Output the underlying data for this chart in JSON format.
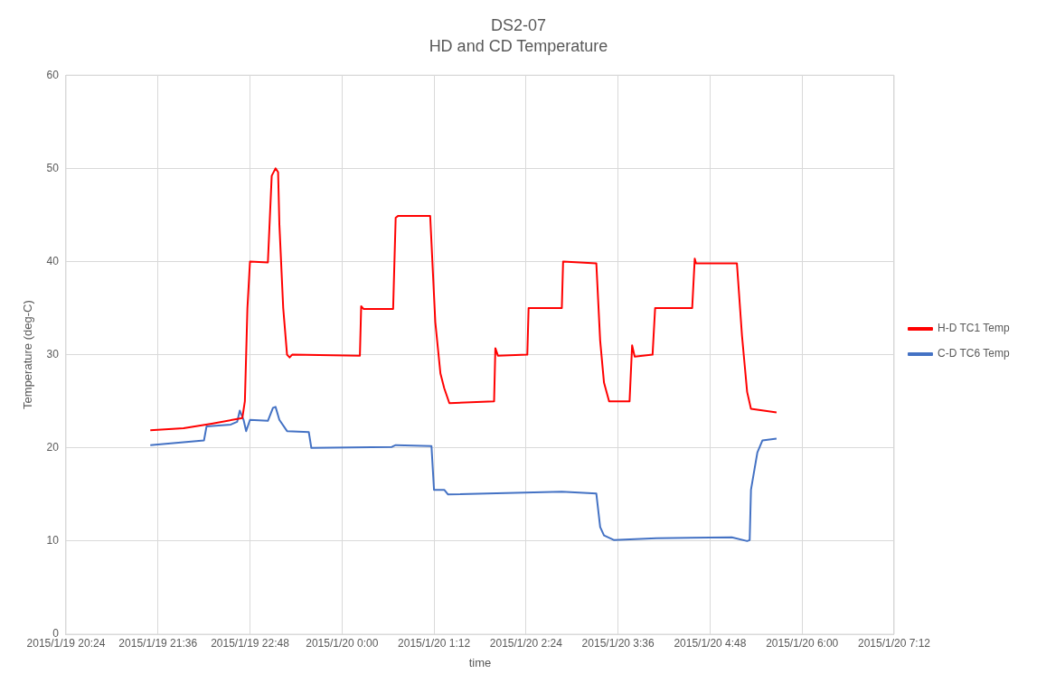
{
  "chart_data": {
    "type": "line",
    "title": "DS2-07",
    "subtitle": "HD and CD Temperature",
    "xlabel": "time",
    "ylabel": "Temperature (deg-C)",
    "xlim": [
      "2015-01-19T20:24",
      "2015-01-20T07:12"
    ],
    "xticks": [
      {
        "value": "2015-01-19T20:24",
        "label": "2015/1/19 20:24"
      },
      {
        "value": "2015-01-19T21:36",
        "label": "2015/1/19 21:36"
      },
      {
        "value": "2015-01-19T22:48",
        "label": "2015/1/19 22:48"
      },
      {
        "value": "2015-01-20T00:00",
        "label": "2015/1/20 0:00"
      },
      {
        "value": "2015-01-20T01:12",
        "label": "2015/1/20 1:12"
      },
      {
        "value": "2015-01-20T02:24",
        "label": "2015/1/20 2:24"
      },
      {
        "value": "2015-01-20T03:36",
        "label": "2015/1/20 3:36"
      },
      {
        "value": "2015-01-20T04:48",
        "label": "2015/1/20 4:48"
      },
      {
        "value": "2015-01-20T06:00",
        "label": "2015/1/20 6:00"
      },
      {
        "value": "2015-01-20T07:12",
        "label": "2015/1/20 7:12"
      }
    ],
    "ylim": [
      0,
      60
    ],
    "yticks": [
      0,
      10,
      20,
      30,
      40,
      50,
      60
    ],
    "grid": true,
    "legend": "right",
    "marker": "none",
    "line_style": "solid",
    "series": [
      {
        "name": "H-D TC1 Temp",
        "color": "#ff0000",
        "x": [
          "2015-01-19T21:30",
          "2015-01-19T21:56",
          "2015-01-19T22:18",
          "2015-01-19T22:42",
          "2015-01-19T22:44",
          "2015-01-19T22:46",
          "2015-01-19T22:48",
          "2015-01-19T23:02",
          "2015-01-19T23:05",
          "2015-01-19T23:08",
          "2015-01-19T23:10",
          "2015-01-19T23:11",
          "2015-01-19T23:14",
          "2015-01-19T23:17",
          "2015-01-19T23:19",
          "2015-01-19T23:21",
          "2015-01-20T00:14",
          "2015-01-20T00:15",
          "2015-01-20T00:17",
          "2015-01-20T00:40",
          "2015-01-20T00:42",
          "2015-01-20T00:44",
          "2015-01-20T01:09",
          "2015-01-20T01:13",
          "2015-01-20T01:17",
          "2015-01-20T01:20",
          "2015-01-20T01:24",
          "2015-01-20T01:59",
          "2015-01-20T02:00",
          "2015-01-20T02:02",
          "2015-01-20T02:25",
          "2015-01-20T02:26",
          "2015-01-20T02:52",
          "2015-01-20T02:53",
          "2015-01-20T03:19",
          "2015-01-20T03:22",
          "2015-01-20T03:25",
          "2015-01-20T03:29",
          "2015-01-20T03:45",
          "2015-01-20T03:47",
          "2015-01-20T03:49",
          "2015-01-20T04:03",
          "2015-01-20T04:05",
          "2015-01-20T04:34",
          "2015-01-20T04:36",
          "2015-01-20T04:37",
          "2015-01-20T05:09",
          "2015-01-20T05:13",
          "2015-01-20T05:17",
          "2015-01-20T05:20",
          "2015-01-20T05:40"
        ],
        "values": [
          21.9,
          22.1,
          22.6,
          23.2,
          25,
          35,
          40,
          39.9,
          49.2,
          50,
          49.6,
          44,
          35,
          30,
          29.7,
          30,
          29.9,
          35.2,
          34.9,
          34.9,
          44.7,
          44.9,
          44.9,
          33.5,
          28,
          26.4,
          24.8,
          25,
          30.7,
          29.9,
          30,
          35,
          35,
          40,
          39.8,
          31.5,
          27,
          25,
          25,
          31,
          29.8,
          30,
          35,
          35,
          40.3,
          39.8,
          39.8,
          32,
          26,
          24.2,
          23.8
        ]
      },
      {
        "name": "C-D TC6 Temp",
        "color": "#4472c4",
        "x": [
          "2015-01-19T21:30",
          "2015-01-19T21:56",
          "2015-01-19T22:12",
          "2015-01-19T22:14",
          "2015-01-19T22:33",
          "2015-01-19T22:38",
          "2015-01-19T22:40",
          "2015-01-19T22:43",
          "2015-01-19T22:45",
          "2015-01-19T22:48",
          "2015-01-19T23:02",
          "2015-01-19T23:06",
          "2015-01-19T23:08",
          "2015-01-19T23:11",
          "2015-01-19T23:17",
          "2015-01-19T23:34",
          "2015-01-19T23:36",
          "2015-01-20T00:39",
          "2015-01-20T00:42",
          "2015-01-20T01:10",
          "2015-01-20T01:12",
          "2015-01-20T01:20",
          "2015-01-20T01:23",
          "2015-01-20T02:52",
          "2015-01-20T03:19",
          "2015-01-20T03:22",
          "2015-01-20T03:25",
          "2015-01-20T03:33",
          "2015-01-20T04:06",
          "2015-01-20T05:05",
          "2015-01-20T05:17",
          "2015-01-20T05:19",
          "2015-01-20T05:20",
          "2015-01-20T05:25",
          "2015-01-20T05:29",
          "2015-01-20T05:40"
        ],
        "values": [
          20.3,
          20.6,
          20.8,
          22.3,
          22.5,
          22.8,
          24,
          23,
          21.8,
          23,
          22.9,
          24.3,
          24.4,
          23,
          21.8,
          21.7,
          20,
          20.1,
          20.3,
          20.2,
          15.5,
          15.5,
          15,
          15.3,
          15.1,
          11.5,
          10.6,
          10.1,
          10.3,
          10.4,
          10,
          10.1,
          15.5,
          19.5,
          20.8,
          21
        ]
      }
    ]
  }
}
